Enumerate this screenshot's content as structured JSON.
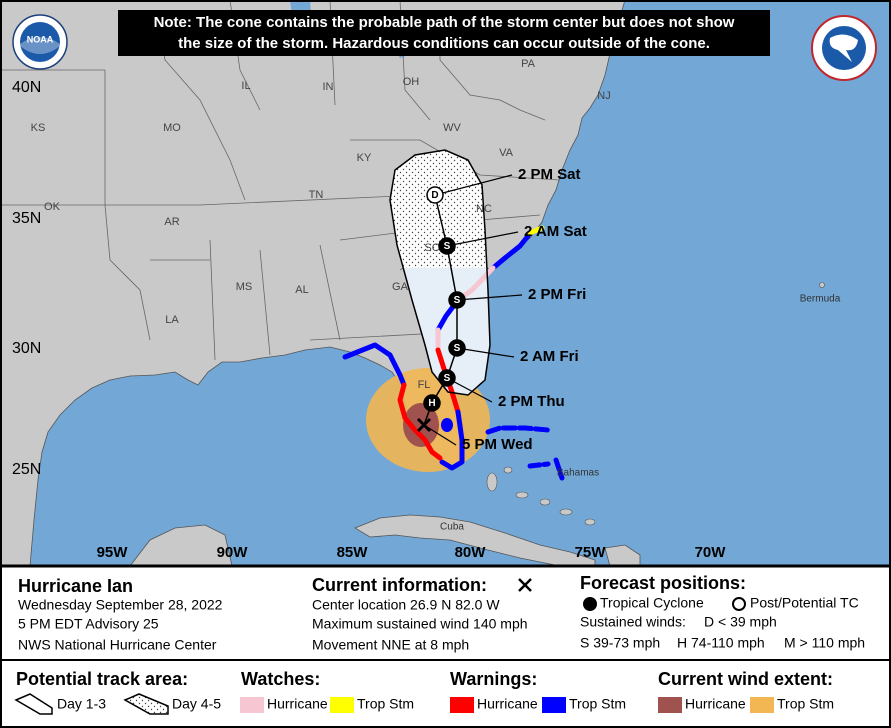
{
  "note": [
    "Note: The cone contains the probable path of the storm center but does not show",
    "the size of the storm. Hazardous conditions can occur outside of the cone."
  ],
  "logos": {
    "noaa": "NOAA"
  },
  "map": {
    "latitudes": [
      "40N",
      "35N",
      "30N",
      "25N"
    ],
    "longitudes": [
      "95W",
      "90W",
      "85W",
      "80W",
      "75W",
      "70W"
    ],
    "states": [
      "PA",
      "OH",
      "IN",
      "IL",
      "NJ",
      "KS",
      "MO",
      "KY",
      "WV",
      "VA",
      "OK",
      "AR",
      "TN",
      "NC",
      "SC",
      "GA",
      "AL",
      "MS",
      "LA",
      "FL"
    ],
    "places": [
      "Bermuda",
      "Bahamas",
      "Cuba"
    ],
    "current_position_label": "5 PM Wed",
    "forecast_points": [
      {
        "symbol": "H"
      },
      {
        "symbol": "S",
        "label": "2 PM Thu"
      },
      {
        "symbol": "S",
        "label": "2 AM Fri"
      },
      {
        "symbol": "S",
        "label": "2 PM Fri"
      },
      {
        "symbol": "S",
        "label": "2 AM Sat"
      },
      {
        "symbol": "D",
        "label": "2 PM Sat"
      }
    ]
  },
  "storm_info": {
    "name": "Hurricane Ian",
    "lines": [
      "Wednesday September 28, 2022",
      "5 PM EDT Advisory 25",
      "NWS National Hurricane Center"
    ]
  },
  "current_information": {
    "title": "Current information:",
    "lines": [
      "Center location 26.9 N 82.0 W",
      "Maximum sustained wind 140 mph",
      "Movement NNE at 8 mph"
    ]
  },
  "forecast_positions": {
    "title": "Forecast positions:",
    "tropical_cyclone": "Tropical Cyclone",
    "post_potential_tc": "Post/Potential TC",
    "sustained_winds": "Sustained winds:",
    "categories": [
      "D < 39 mph",
      "S 39-73 mph",
      "H 74-110 mph",
      "M > 110 mph"
    ]
  },
  "legend": {
    "track_area": {
      "title": "Potential track area:",
      "items": [
        "Day 1-3",
        "Day 4-5"
      ]
    },
    "watches": {
      "title": "Watches:",
      "items": [
        {
          "label": "Hurricane",
          "color": "#f7c6d3"
        },
        {
          "label": "Trop Stm",
          "color": "#ffff00"
        }
      ]
    },
    "warnings": {
      "title": "Warnings:",
      "items": [
        {
          "label": "Hurricane",
          "color": "#ff0000"
        },
        {
          "label": "Trop Stm",
          "color": "#0000ff"
        }
      ]
    },
    "wind_extent": {
      "title": "Current wind extent:",
      "items": [
        {
          "label": "Hurricane",
          "color": "#a0524f"
        },
        {
          "label": "Trop Stm",
          "color": "#f2b652"
        }
      ]
    }
  }
}
